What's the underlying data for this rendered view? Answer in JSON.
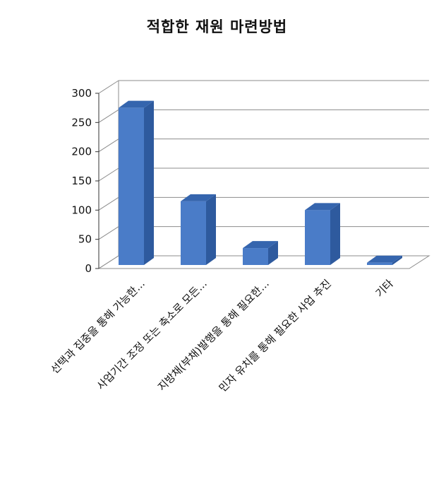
{
  "chart_data": {
    "type": "bar",
    "title": "적합한 재원 마련방법",
    "categories": [
      "선택과 집중을 통해 가능한...",
      "사업기간 조정 또는 축소로 모든...",
      "지방채(부채)발행을 통해 필요한...",
      "민자 유치를 통해 필요한 사업 추진",
      "기타"
    ],
    "values": [
      275,
      115,
      35,
      100,
      10
    ],
    "ylim": [
      0,
      300
    ],
    "yticks": [
      0,
      50,
      100,
      150,
      200,
      250,
      300
    ],
    "ytick_labels": [
      "0",
      "50",
      "100",
      "150",
      "200",
      "250",
      "300"
    ],
    "grid": true,
    "legend": "none",
    "style": "3d-column",
    "colors": {
      "bar_front": "#4A7CC8",
      "bar_side": "#2E5A9E",
      "bar_top": "#3565AE",
      "grid": "#8c8c8c",
      "axis": "#333333"
    }
  }
}
